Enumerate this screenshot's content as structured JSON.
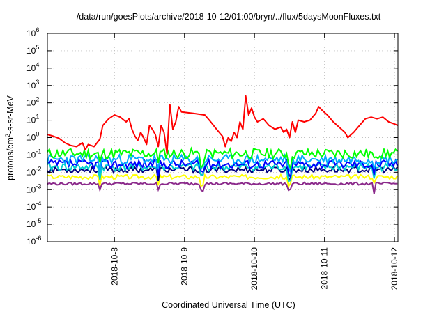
{
  "chart_data": {
    "type": "line",
    "title": "/data/run/goesPlots/archive/2018-10-12/01:00/bryn/../flux/5daysMoonFluxes.txt",
    "xlabel": "Coordinated Universal Time (UTC)",
    "ylabel": {
      "prefix": "protons/cm",
      "sup": "2",
      "suffix": "-s-sr-MeV"
    },
    "yscale": "log",
    "ylim": [
      1e-06,
      1000000.0
    ],
    "xlim": [
      "2018-10-07T01:00",
      "2018-10-12T01:10"
    ],
    "grid": true,
    "legend": "none",
    "y_ticks": [
      {
        "value": 1e-06,
        "base": "10",
        "exp": "-6"
      },
      {
        "value": 1e-05,
        "base": "10",
        "exp": "-5"
      },
      {
        "value": 0.0001,
        "base": "10",
        "exp": "-4"
      },
      {
        "value": 0.001,
        "base": "10",
        "exp": "-3"
      },
      {
        "value": 0.01,
        "base": "10",
        "exp": "-2"
      },
      {
        "value": 0.1,
        "base": "10",
        "exp": "-1"
      },
      {
        "value": 1.0,
        "base": "10",
        "exp": "0"
      },
      {
        "value": 10.0,
        "base": "10",
        "exp": "1"
      },
      {
        "value": 100.0,
        "base": "10",
        "exp": "2"
      },
      {
        "value": 1000.0,
        "base": "10",
        "exp": "3"
      },
      {
        "value": 10000.0,
        "base": "10",
        "exp": "4"
      },
      {
        "value": 100000.0,
        "base": "10",
        "exp": "5"
      },
      {
        "value": 1000000.0,
        "base": "10",
        "exp": "6"
      }
    ],
    "x_ticks": [
      {
        "value": "2018-10-08T00:00",
        "label": "2018-10-8"
      },
      {
        "value": "2018-10-09T00:00",
        "label": "2018-10-9"
      },
      {
        "value": "2018-10-10T00:00",
        "label": "2018-10-10"
      },
      {
        "value": "2018-10-11T00:00",
        "label": "2018-10-11"
      },
      {
        "value": "2018-10-12T00:00",
        "label": "2018-10-12"
      }
    ],
    "series": [
      {
        "color": "#ff0000",
        "points": [
          [
            "2018-10-07T01:00",
            1.5
          ],
          [
            "2018-10-07T03:00",
            1.2
          ],
          [
            "2018-10-07T05:00",
            0.9
          ],
          [
            "2018-10-07T07:00",
            0.5
          ],
          [
            "2018-10-07T09:00",
            0.35
          ],
          [
            "2018-10-07T11:00",
            0.3
          ],
          [
            "2018-10-07T13:00",
            0.5
          ],
          [
            "2018-10-07T14:00",
            0.2
          ],
          [
            "2018-10-07T15:00",
            0.4
          ],
          [
            "2018-10-07T17:00",
            0.3
          ],
          [
            "2018-10-07T19:00",
            0.8
          ],
          [
            "2018-10-07T20:00",
            5
          ],
          [
            "2018-10-07T22:00",
            12
          ],
          [
            "2018-10-08T00:00",
            20
          ],
          [
            "2018-10-08T02:00",
            15
          ],
          [
            "2018-10-08T04:00",
            8
          ],
          [
            "2018-10-08T05:00",
            12
          ],
          [
            "2018-10-08T06:00",
            3
          ],
          [
            "2018-10-08T07:00",
            1.2
          ],
          [
            "2018-10-08T08:00",
            0.7
          ],
          [
            "2018-10-08T09:00",
            2
          ],
          [
            "2018-10-08T10:00",
            1
          ],
          [
            "2018-10-08T11:00",
            0.4
          ],
          [
            "2018-10-08T12:00",
            5
          ],
          [
            "2018-10-08T13:00",
            3
          ],
          [
            "2018-10-08T14:00",
            1.5
          ],
          [
            "2018-10-08T15:00",
            0.3
          ],
          [
            "2018-10-08T16:00",
            5
          ],
          [
            "2018-10-08T17:00",
            2
          ],
          [
            "2018-10-08T18:00",
            0.12
          ],
          [
            "2018-10-08T19:00",
            80
          ],
          [
            "2018-10-08T20:00",
            3
          ],
          [
            "2018-10-08T21:00",
            8
          ],
          [
            "2018-10-08T22:00",
            60
          ],
          [
            "2018-10-08T23:00",
            30
          ],
          [
            "2018-10-09T03:00",
            25
          ],
          [
            "2018-10-09T07:00",
            20
          ],
          [
            "2018-10-09T09:00",
            8
          ],
          [
            "2018-10-09T11:00",
            3
          ],
          [
            "2018-10-09T13:00",
            1.2
          ],
          [
            "2018-10-09T14:00",
            0.3
          ],
          [
            "2018-10-09T15:00",
            1
          ],
          [
            "2018-10-09T16:00",
            0.6
          ],
          [
            "2018-10-09T17:00",
            2
          ],
          [
            "2018-10-09T18:00",
            1
          ],
          [
            "2018-10-09T19:00",
            8
          ],
          [
            "2018-10-09T20:00",
            3
          ],
          [
            "2018-10-09T21:00",
            250
          ],
          [
            "2018-10-09T22:00",
            20
          ],
          [
            "2018-10-09T23:00",
            50
          ],
          [
            "2018-10-10T00:00",
            15
          ],
          [
            "2018-10-10T01:00",
            8
          ],
          [
            "2018-10-10T03:00",
            12
          ],
          [
            "2018-10-10T05:00",
            5
          ],
          [
            "2018-10-10T07:00",
            3
          ],
          [
            "2018-10-10T09:00",
            4
          ],
          [
            "2018-10-10T10:00",
            2
          ],
          [
            "2018-10-10T11:00",
            3
          ],
          [
            "2018-10-10T12:00",
            1
          ],
          [
            "2018-10-10T13:00",
            8
          ],
          [
            "2018-10-10T14:00",
            2
          ],
          [
            "2018-10-10T15:00",
            10
          ],
          [
            "2018-10-10T17:00",
            8
          ],
          [
            "2018-10-10T19:00",
            10
          ],
          [
            "2018-10-10T21:00",
            25
          ],
          [
            "2018-10-10T22:00",
            60
          ],
          [
            "2018-10-10T23:00",
            40
          ],
          [
            "2018-10-11T01:00",
            20
          ],
          [
            "2018-10-11T03:00",
            8
          ],
          [
            "2018-10-11T05:00",
            4
          ],
          [
            "2018-10-11T07:00",
            2
          ],
          [
            "2018-10-11T08:00",
            1
          ],
          [
            "2018-10-11T10:00",
            2
          ],
          [
            "2018-10-11T12:00",
            5
          ],
          [
            "2018-10-11T14:00",
            12
          ],
          [
            "2018-10-11T16:00",
            15
          ],
          [
            "2018-10-11T18:00",
            12
          ],
          [
            "2018-10-11T20:00",
            15
          ],
          [
            "2018-10-11T22:00",
            8
          ],
          [
            "2018-10-12T00:00",
            6
          ],
          [
            "2018-10-12T01:10",
            5
          ]
        ]
      },
      {
        "color": "#00ff00",
        "base": 0.12,
        "amp": 0.6,
        "dip": 0.45,
        "seed": 11
      },
      {
        "color": "#00aaff",
        "base": 0.055,
        "amp": 0.55,
        "dip": 0.4,
        "seed": 23
      },
      {
        "color": "#0000ff",
        "base": 0.03,
        "amp": 0.5,
        "dip": 0.4,
        "seed": 37
      },
      {
        "color": "#00d0d0",
        "base": 0.02,
        "amp": 0.45,
        "dip": 0.45,
        "seed": 41
      },
      {
        "color": "#000080",
        "base": 0.014,
        "amp": 0.35,
        "dip": 0.35,
        "seed": 53
      },
      {
        "color": "#ffff00",
        "base": 0.0055,
        "amp": 0.25,
        "dip": 0.4,
        "seed": 67
      },
      {
        "color": "#8b2a8b",
        "base": 0.0022,
        "amp": 0.15,
        "dip": 0.35,
        "seed": 79
      }
    ],
    "dip_times": [
      "2018-10-07T19:00",
      "2018-10-08T15:00",
      "2018-10-09T06:00",
      "2018-10-10T12:00",
      "2018-10-11T17:00"
    ]
  }
}
